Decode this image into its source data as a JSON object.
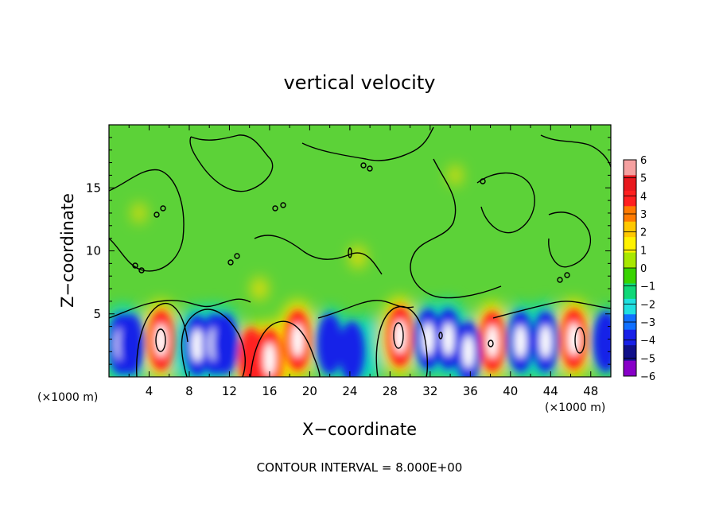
{
  "chart_data": {
    "type": "heatmap",
    "title": "vertical velocity",
    "xlabel": "X−coordinate",
    "ylabel": "Z−coordinate",
    "x_unit_left": "(×1000 m)",
    "x_unit_right": "(×1000 m)",
    "xlim": [
      0,
      50
    ],
    "ylim": [
      0,
      20
    ],
    "x_ticks": [
      4,
      8,
      12,
      16,
      20,
      24,
      28,
      32,
      36,
      40,
      44,
      48
    ],
    "y_ticks": [
      5,
      10,
      15
    ],
    "footer": "CONTOUR INTERVAL = 8.000E+00",
    "colorbar": {
      "levels": [
        6,
        5,
        4,
        3,
        2,
        1,
        0,
        -1,
        -2,
        -3,
        -4,
        -5,
        -6
      ],
      "labels": [
        "6",
        "5",
        "4",
        "3",
        "2",
        "1",
        "0",
        "−1",
        "−2",
        "−3",
        "−4",
        "−5",
        "−6"
      ],
      "colors": [
        "#f5a0a0",
        "#e8181e",
        "#ff2020",
        "#ff7a00",
        "#ffc800",
        "#fff200",
        "#a8e800",
        "#38d400",
        "#10d878",
        "#20e0e0",
        "#1070ff",
        "#1820e8",
        "#10108a",
        "#8800c8"
      ]
    },
    "background_color": "#5cd238",
    "cells": [
      {
        "x": 1.2,
        "z": 2.6,
        "w": -6
      },
      {
        "x": 2.2,
        "z": 2.6,
        "w": -4
      },
      {
        "x": 3.0,
        "z": 2.4,
        "w": -2
      },
      {
        "x": 5.2,
        "z": 2.9,
        "w": 6
      },
      {
        "x": 7.3,
        "z": 2.3,
        "w": -2
      },
      {
        "x": 8.8,
        "z": 2.5,
        "w": -6
      },
      {
        "x": 10.5,
        "z": 2.6,
        "w": -6
      },
      {
        "x": 11.6,
        "z": 2.6,
        "w": -4
      },
      {
        "x": 16.0,
        "z": 1.4,
        "w": 5
      },
      {
        "x": 14.2,
        "z": 1.5,
        "w": 3
      },
      {
        "x": 18.8,
        "z": 2.9,
        "w": 6
      },
      {
        "x": 22.0,
        "z": 2.6,
        "w": -4
      },
      {
        "x": 24.2,
        "z": 2.0,
        "w": -3
      },
      {
        "x": 26.0,
        "z": 2.2,
        "w": -2
      },
      {
        "x": 29.0,
        "z": 3.2,
        "w": 6
      },
      {
        "x": 31.8,
        "z": 3.0,
        "w": -5
      },
      {
        "x": 33.8,
        "z": 3.0,
        "w": -6
      },
      {
        "x": 35.8,
        "z": 2.0,
        "w": -5
      },
      {
        "x": 38.2,
        "z": 2.8,
        "w": 6
      },
      {
        "x": 41.0,
        "z": 2.8,
        "w": -5
      },
      {
        "x": 43.5,
        "z": 2.8,
        "w": -6
      },
      {
        "x": 46.3,
        "z": 3.0,
        "w": 6
      },
      {
        "x": 49.5,
        "z": 2.8,
        "w": -3
      },
      {
        "x": 15.0,
        "z": 7.0,
        "w": 2
      },
      {
        "x": 24.8,
        "z": 9.5,
        "w": 2
      },
      {
        "x": 3.0,
        "z": 13.0,
        "w": 1
      },
      {
        "x": 34.5,
        "z": 16.0,
        "w": 1
      }
    ]
  }
}
